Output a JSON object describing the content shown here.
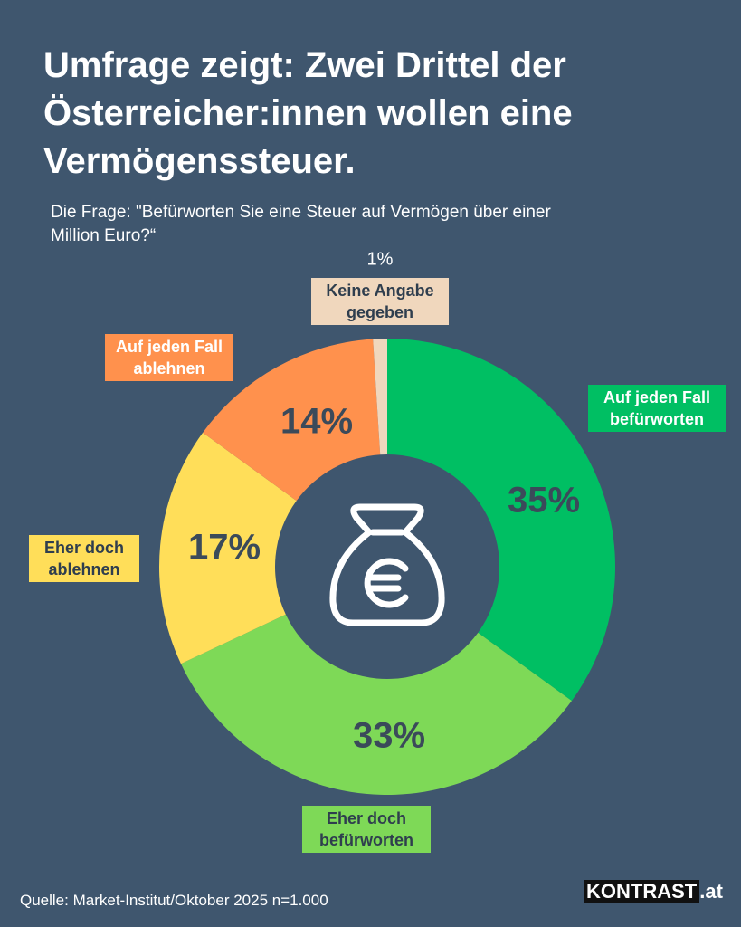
{
  "chart_data": {
    "type": "donut",
    "title": "Umfrage zeigt: Zwei Drittel der Österreicher:innen wollen eine Vermögenssteuer.",
    "subtitle": "Die Frage: \"Befürworten Sie eine Steuer auf Vermögen über einer Million Euro?“",
    "categories": [
      "Auf jeden Fall befürworten",
      "Eher doch befürworten",
      "Eher doch ablehnen",
      "Auf jeden Fall ablehnen",
      "Keine Angabe gegeben"
    ],
    "values": [
      35,
      33,
      17,
      14,
      1
    ],
    "value_labels": [
      "35%",
      "33%",
      "17%",
      "14%",
      "1%"
    ],
    "colors": [
      "#00bf63",
      "#7ed957",
      "#ffde59",
      "#ff914d",
      "#f0d7bd"
    ],
    "source": "Quelle: Market-Institut/Oktober 2025 n=1.000",
    "brand": "KONTRAST",
    "brand_suffix": ".at"
  }
}
